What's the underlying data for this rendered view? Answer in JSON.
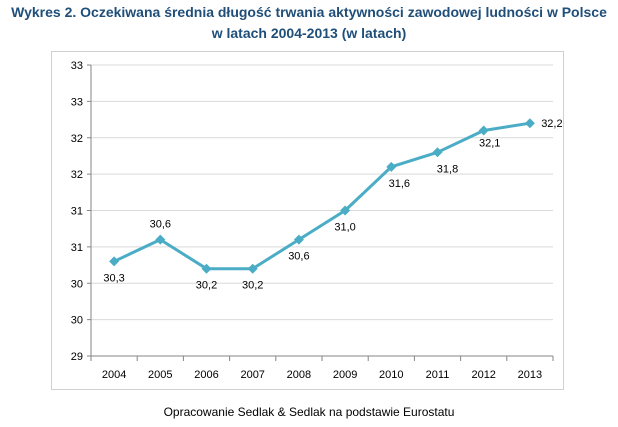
{
  "chart_data": {
    "type": "line",
    "title_lines": [
      "Wykres 2. Oczekiwana średnia długość trwania aktywności zawodowej ludności w Polsce",
      "w latach 2004-2013 (w latach)"
    ],
    "xlabel": "",
    "ylabel": "",
    "categories": [
      "2004",
      "2005",
      "2006",
      "2007",
      "2008",
      "2009",
      "2010",
      "2011",
      "2012",
      "2013"
    ],
    "series": [
      {
        "values": [
          30.3,
          30.6,
          30.2,
          30.2,
          30.6,
          31.0,
          31.6,
          31.8,
          32.1,
          32.2
        ],
        "data_labels": [
          "30,3",
          "30,6",
          "30,2",
          "30,2",
          "30,6",
          "31,0",
          "31,6",
          "31,8",
          "32,1",
          "32,2"
        ],
        "color": "#4bacc6"
      }
    ],
    "ylim": [
      29,
      33
    ],
    "y_ticks": [
      29,
      29.5,
      30,
      30.5,
      31,
      31.5,
      32,
      32.5,
      33
    ],
    "y_tick_labels": [
      "29",
      "30",
      "30",
      "31",
      "31",
      "32",
      "32",
      "33",
      "33"
    ],
    "grid": true,
    "legend": false
  },
  "source_note": "Opracowanie Sedlak & Sedlak na podstawie Eurostatu",
  "colors": {
    "title": "#1f4e79",
    "line": "#4bacc6",
    "grid": "#d9d9d9",
    "axis": "#868686"
  }
}
